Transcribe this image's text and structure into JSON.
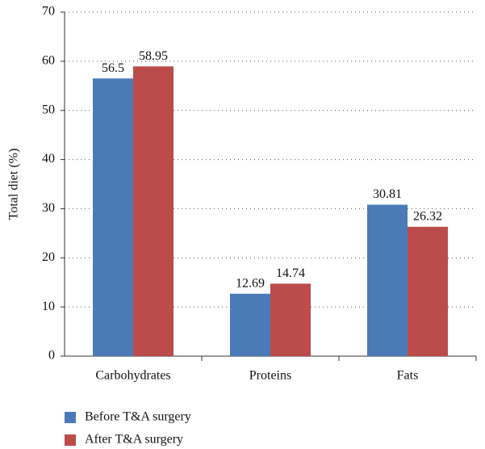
{
  "chart_data": {
    "type": "bar",
    "y_label": "Total diet (%)",
    "categories": [
      "Carbohydrates",
      "Proteins",
      "Fats"
    ],
    "series": [
      {
        "name": "Before T&A surgery",
        "color": "#4a7bb7",
        "values": [
          56.5,
          12.69,
          30.81
        ]
      },
      {
        "name": "After T&A surgery",
        "color": "#bc4c4b",
        "values": [
          58.95,
          14.74,
          26.32
        ]
      }
    ],
    "ylim": [
      0,
      70
    ],
    "yticks": [
      0,
      10,
      20,
      30,
      40,
      50,
      60,
      70
    ],
    "grid": true,
    "legend": "bottom-left"
  }
}
